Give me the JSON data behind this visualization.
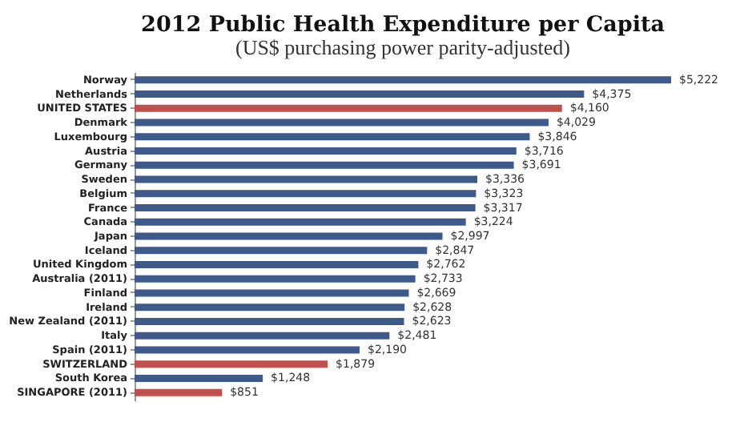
{
  "chart_data": {
    "type": "bar",
    "orientation": "horizontal",
    "title": "2012 Public Health Expenditure per Capita",
    "subtitle": "(US$ purchasing power parity-adjusted)",
    "categories": [
      "Norway",
      "Netherlands",
      "UNITED STATES",
      "Denmark",
      "Luxembourg",
      "Austria",
      "Germany",
      "Sweden",
      "Belgium",
      "France",
      "Canada",
      "Japan",
      "Iceland",
      "United Kingdom",
      "Australia (2011)",
      "Finland",
      "Ireland",
      "New Zealand (2011)",
      "Italy",
      "Spain (2011)",
      "SWITZERLAND",
      "South Korea",
      "SINGAPORE (2011)"
    ],
    "values": [
      5222,
      4375,
      4160,
      4029,
      3846,
      3716,
      3691,
      3336,
      3323,
      3317,
      3224,
      2997,
      2847,
      2762,
      2733,
      2669,
      2628,
      2623,
      2481,
      2190,
      1879,
      1248,
      851
    ],
    "value_labels": [
      "$5,222",
      "$4,375",
      "$4,160",
      "$4,029",
      "$3,846",
      "$3,716",
      "$3,691",
      "$3,336",
      "$3,323",
      "$3,317",
      "$3,224",
      "$2,997",
      "$2,847",
      "$2,762",
      "$2,733",
      "$2,669",
      "$2,628",
      "$2,623",
      "$2,481",
      "$2,190",
      "$1,879",
      "$1,248",
      "$851"
    ],
    "colors": [
      "#3d5a8a",
      "#3d5a8a",
      "#c0504d",
      "#3d5a8a",
      "#3d5a8a",
      "#3d5a8a",
      "#3d5a8a",
      "#3d5a8a",
      "#3d5a8a",
      "#3d5a8a",
      "#3d5a8a",
      "#3d5a8a",
      "#3d5a8a",
      "#3d5a8a",
      "#3d5a8a",
      "#3d5a8a",
      "#3d5a8a",
      "#3d5a8a",
      "#3d5a8a",
      "#3d5a8a",
      "#c0504d",
      "#3d5a8a",
      "#c0504d"
    ],
    "tick_labels": "y",
    "grid": false
  }
}
